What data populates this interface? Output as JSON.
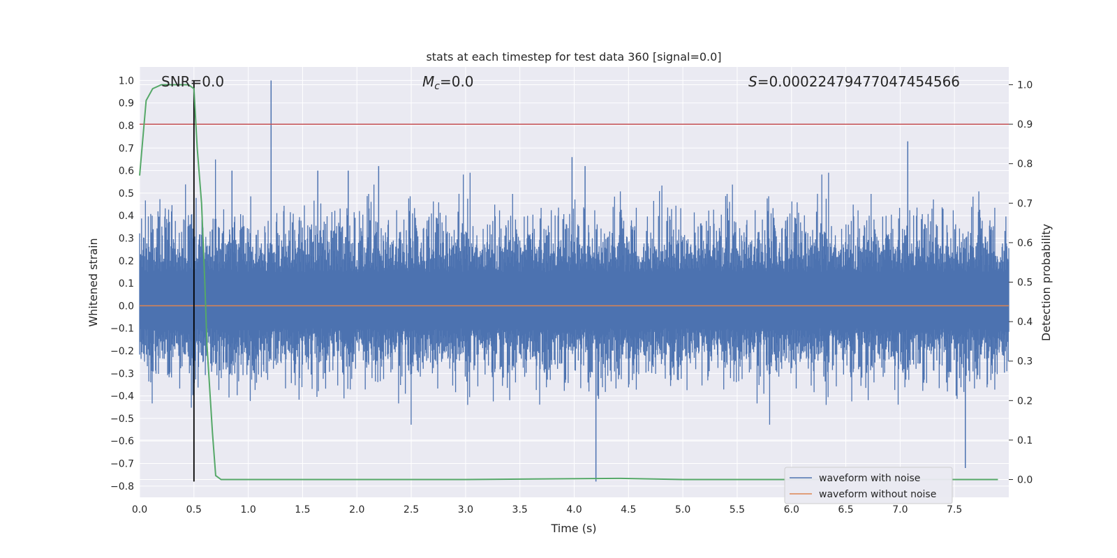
{
  "chart_data": {
    "type": "line",
    "title": "stats at each timestep for test data 360 [signal=0.0]",
    "xlabel": "Time (s)",
    "ylabel": "Whitened strain",
    "y2label": "Detection probability",
    "xlim": [
      0.0,
      8.0
    ],
    "ylim": [
      -0.85,
      1.06
    ],
    "y2lim": [
      -0.045,
      1.045
    ],
    "xticks": [
      "0.0",
      "0.5",
      "1.0",
      "1.5",
      "2.0",
      "2.5",
      "3.0",
      "3.5",
      "4.0",
      "4.5",
      "5.0",
      "5.5",
      "6.0",
      "6.5",
      "7.0",
      "7.5"
    ],
    "yticks": [
      "1.0",
      "0.9",
      "0.8",
      "0.7",
      "0.6",
      "0.5",
      "0.4",
      "0.3",
      "0.2",
      "0.1",
      "0.0",
      "−0.1",
      "−0.2",
      "−0.3",
      "−0.4",
      "−0.5",
      "−0.6",
      "−0.7",
      "−0.8"
    ],
    "y2ticks": [
      "1.0",
      "0.9",
      "0.8",
      "0.7",
      "0.6",
      "0.5",
      "0.4",
      "0.3",
      "0.2",
      "0.1",
      "0.0"
    ],
    "grid": true,
    "annotations": {
      "snr": "SNR=0.0",
      "mc_symbol": "M",
      "mc_sub": "c",
      "mc_value": "=0.0",
      "s_symbol": "S",
      "s_value": "=0.00022479477047454566"
    },
    "series": [
      {
        "name": "waveform with noise",
        "color": "#4c72b0",
        "axis": "left",
        "kind": "noise",
        "envelope": [
          -0.78,
          1.0
        ],
        "spikes": [
          [
            1.21,
            1.0
          ],
          [
            4.2,
            -0.78
          ],
          [
            7.07,
            0.73
          ],
          [
            7.6,
            -0.72
          ],
          [
            1.64,
            0.6
          ],
          [
            1.92,
            0.6
          ],
          [
            3.98,
            0.66
          ],
          [
            4.1,
            0.62
          ],
          [
            0.85,
            0.6
          ],
          [
            2.2,
            0.62
          ]
        ]
      },
      {
        "name": "waveform without noise",
        "color": "#dd8452",
        "axis": "left",
        "x": [
          0.0,
          8.0
        ],
        "y": [
          0.0,
          0.0
        ]
      },
      {
        "name": "",
        "color": "#55a868",
        "axis": "right",
        "x": [
          0.0,
          0.06,
          0.12,
          0.2,
          0.3,
          0.4,
          0.45,
          0.5,
          0.53,
          0.57,
          0.6,
          0.62,
          0.67,
          0.7,
          0.75,
          0.9,
          1.5,
          3.0,
          4.4,
          5.0,
          6.0,
          7.0,
          7.9
        ],
        "y": [
          0.77,
          0.96,
          0.99,
          1.0,
          1.0,
          1.0,
          1.0,
          0.99,
          0.84,
          0.7,
          0.5,
          0.34,
          0.12,
          0.01,
          0.0,
          0.0,
          0.0,
          0.0,
          0.003,
          0.0,
          0.0,
          0.0,
          0.0
        ]
      }
    ],
    "hlines": [
      {
        "axis": "right",
        "y": 0.9,
        "color": "#c44e52"
      }
    ],
    "vlines": [
      {
        "x": 0.5,
        "y": [
          -0.78,
          1.0
        ],
        "color": "#000000"
      }
    ],
    "legend": {
      "placement": "lower-right",
      "entries": [
        "waveform with noise",
        "waveform without noise"
      ]
    }
  }
}
